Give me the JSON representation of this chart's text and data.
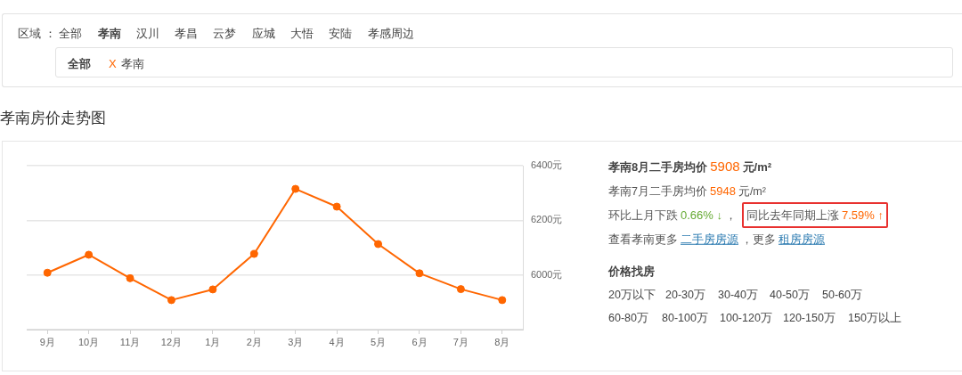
{
  "chart_data": {
    "type": "line",
    "title": "孝南房价走势图",
    "categories": [
      "9月",
      "10月",
      "11月",
      "12月",
      "1月",
      "2月",
      "3月",
      "4月",
      "5月",
      "6月",
      "7月",
      "8月"
    ],
    "series": [
      {
        "color": "#ff6600",
        "values": [
          6008,
          6074,
          5988,
          5908,
          5947,
          6077,
          6315,
          6250,
          6113,
          6006,
          5948,
          5908
        ]
      }
    ],
    "ylim": [
      5800,
      6400
    ],
    "yticks": [
      {
        "value": 5800,
        "label": null
      },
      {
        "value": 6000,
        "label": "6000元"
      },
      {
        "value": 6200,
        "label": "6200元"
      },
      {
        "value": 6400,
        "label": "6400元"
      }
    ],
    "grid": "y",
    "marker": "circle",
    "annotations": [
      "区域 ：",
      "全部",
      "孝南",
      "汉川",
      "孝昌",
      "云梦",
      "应城",
      "大悟",
      "安陆",
      "孝感周边",
      "全部",
      "X",
      "孝南",
      "孝南8月二手房均价",
      "5908",
      "元/m²",
      "孝南7月二手房均价",
      "5948",
      "元/m²",
      "环比上月下跌",
      "0.66% ↓",
      "，",
      "同比去年同期上涨",
      "7.59% ↑",
      "查看孝南更多",
      "二手房房源",
      "，更多",
      "租房房源",
      "价格找房",
      "20万以下",
      "20-30万",
      "30-40万",
      "40-50万",
      "50-60万",
      "60-80万",
      "80-100万",
      "100-120万",
      "120-150万",
      "150万以上"
    ]
  }
}
